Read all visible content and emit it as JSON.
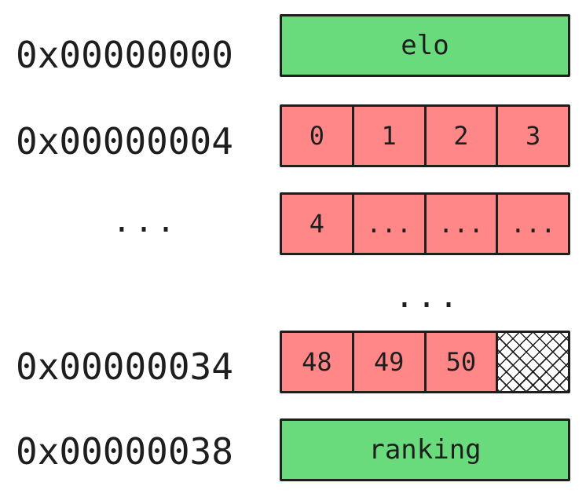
{
  "rows": [
    {
      "address": "0x00000000",
      "kind": "field",
      "label": "elo"
    },
    {
      "address": "0x00000004",
      "kind": "bytes",
      "cells": [
        "0",
        "1",
        "2",
        "3"
      ]
    },
    {
      "address": "...",
      "kind": "bytes",
      "cells": [
        "4",
        "...",
        "...",
        "..."
      ]
    },
    {
      "kind": "gap",
      "label": "..."
    },
    {
      "address": "0x00000034",
      "kind": "bytes",
      "cells": [
        "48",
        "49",
        "50"
      ],
      "padding": true
    },
    {
      "address": "0x00000038",
      "kind": "field",
      "label": "ranking"
    }
  ],
  "colors": {
    "field_fill": "#69db7c",
    "byte_fill": "#ff8787",
    "stroke": "#1e1e1e",
    "padding_hatch": "cross-hatch"
  }
}
